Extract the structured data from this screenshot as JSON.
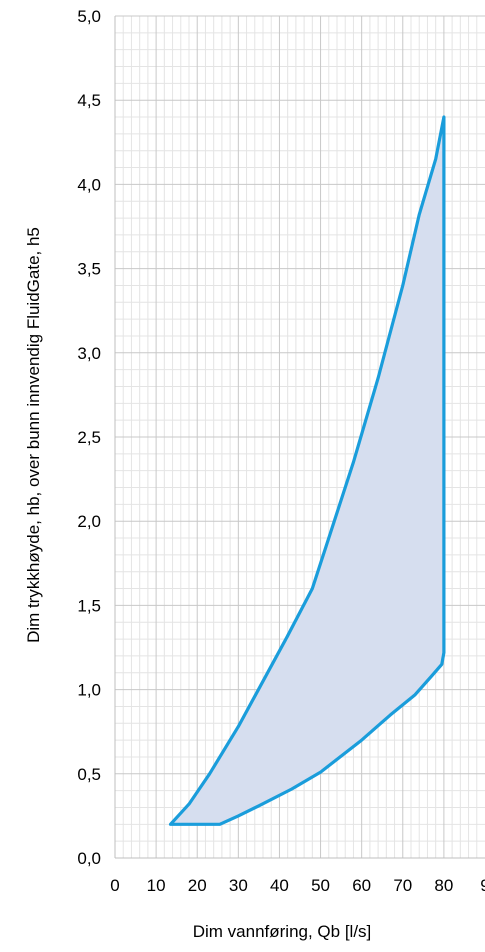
{
  "chart_data": {
    "type": "area",
    "xlabel": "Dim vannføring, Qb [l/s]",
    "ylabel": "Dim trykkhøyde, hb, over bunn innvendig FluidGate, h5",
    "xlim": [
      0,
      90
    ],
    "ylim": [
      0,
      5
    ],
    "x_ticks": [
      "0",
      "10",
      "20",
      "30",
      "40",
      "50",
      "60",
      "70",
      "80",
      "9"
    ],
    "y_ticks": [
      "0,0",
      "0,5",
      "1,0",
      "1,5",
      "2,0",
      "2,5",
      "3,0",
      "3,5",
      "4,0",
      "4,5",
      "5,0"
    ],
    "grid": true,
    "minor_grid": true,
    "series": [
      {
        "line_color": "#1a9ddb",
        "fill_color": "#d6deef",
        "upper_curve": [
          {
            "x": 13.5,
            "y": 0.2
          },
          {
            "x": 18,
            "y": 0.32
          },
          {
            "x": 23,
            "y": 0.5
          },
          {
            "x": 30,
            "y": 0.78
          },
          {
            "x": 36,
            "y": 1.05
          },
          {
            "x": 42,
            "y": 1.32
          },
          {
            "x": 48,
            "y": 1.6
          },
          {
            "x": 52,
            "y": 1.9
          },
          {
            "x": 58,
            "y": 2.35
          },
          {
            "x": 64,
            "y": 2.85
          },
          {
            "x": 70,
            "y": 3.4
          },
          {
            "x": 74,
            "y": 3.82
          },
          {
            "x": 78,
            "y": 4.15
          },
          {
            "x": 80,
            "y": 4.4
          }
        ],
        "lower_curve": [
          {
            "x": 80,
            "y": 1.22
          },
          {
            "x": 79.5,
            "y": 1.15
          },
          {
            "x": 77,
            "y": 1.08
          },
          {
            "x": 73,
            "y": 0.97
          },
          {
            "x": 67,
            "y": 0.85
          },
          {
            "x": 60,
            "y": 0.7
          },
          {
            "x": 50,
            "y": 0.51
          },
          {
            "x": 43,
            "y": 0.41
          },
          {
            "x": 35,
            "y": 0.31
          },
          {
            "x": 30,
            "y": 0.25
          },
          {
            "x": 25.5,
            "y": 0.2
          },
          {
            "x": 13.5,
            "y": 0.2
          }
        ]
      }
    ]
  }
}
